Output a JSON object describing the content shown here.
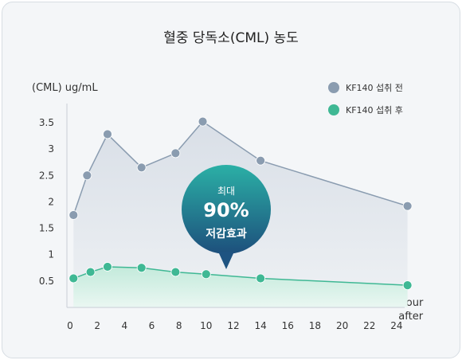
{
  "chart_data": {
    "type": "area",
    "title": "혈중 당독소(CML) 농도",
    "ylabel": "(CML) ug/mL",
    "xlabel_lines": [
      "Hour",
      "after"
    ],
    "xlim": [
      0,
      25
    ],
    "ylim": [
      0,
      3.5
    ],
    "x_ticks": [
      0,
      2,
      4,
      6,
      8,
      10,
      12,
      14,
      16,
      18,
      20,
      22,
      24
    ],
    "y_ticks": [
      0.5,
      1,
      1.5,
      2,
      2.5,
      3,
      3.5
    ],
    "legend_position": "top-right",
    "series": [
      {
        "name": "KF140 섭취 전",
        "color": "#8a9cb0",
        "fill": "#e1e6ec",
        "x": [
          0.25,
          1.25,
          2.75,
          5.25,
          7.75,
          9.75,
          14.0,
          24.8
        ],
        "values": [
          1.75,
          2.5,
          3.28,
          2.65,
          2.92,
          3.52,
          2.78,
          1.92
        ]
      },
      {
        "name": "KF140 섭취 후",
        "color": "#3fb894",
        "fill": "#d4efe5",
        "x": [
          0.25,
          1.5,
          2.75,
          5.25,
          7.75,
          10.0,
          14.0,
          24.8
        ],
        "values": [
          0.55,
          0.67,
          0.77,
          0.75,
          0.67,
          0.63,
          0.55,
          0.42
        ]
      }
    ],
    "callout": {
      "line1": "최대",
      "line2": "90%",
      "line3": "저감효과",
      "color_top": "#2aa3a7",
      "color_bottom": "#1e5a82"
    }
  }
}
